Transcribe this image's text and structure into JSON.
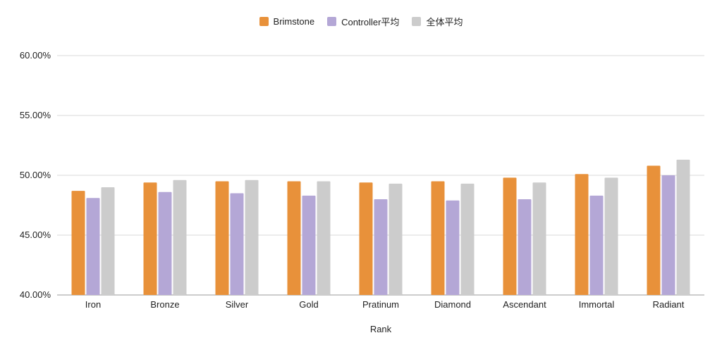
{
  "chart_data": {
    "type": "bar",
    "categories": [
      "Iron",
      "Bronze",
      "Silver",
      "Gold",
      "Pratinum",
      "Diamond",
      "Ascendant",
      "Immortal",
      "Radiant"
    ],
    "series": [
      {
        "name": "Brimstone",
        "color": "#e8913a",
        "values": [
          48.7,
          49.4,
          49.5,
          49.5,
          49.4,
          49.5,
          49.8,
          50.1,
          50.8
        ]
      },
      {
        "name": "Controller平均",
        "color": "#b4a7d6",
        "values": [
          48.1,
          48.6,
          48.5,
          48.3,
          48.0,
          47.9,
          48.0,
          48.3,
          50.0
        ]
      },
      {
        "name": "全体平均",
        "color": "#cccccc",
        "values": [
          49.0,
          49.6,
          49.6,
          49.5,
          49.3,
          49.3,
          49.4,
          49.8,
          51.3
        ]
      }
    ],
    "xlabel": "Rank",
    "ylabel": "",
    "ylim": [
      40,
      60
    ],
    "yticks": [
      "40.00%",
      "45.00%",
      "50.00%",
      "55.00%",
      "60.00%"
    ],
    "grid": true,
    "legend": "top-center"
  }
}
